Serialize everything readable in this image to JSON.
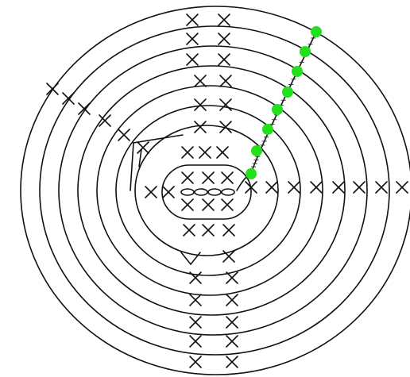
{
  "diagram": {
    "type": "crochet-chart",
    "rounds": 8,
    "stitch_symbol": "×",
    "marker_color": "#22e01b",
    "line_color": "#111111",
    "background": "#ffffff"
  }
}
